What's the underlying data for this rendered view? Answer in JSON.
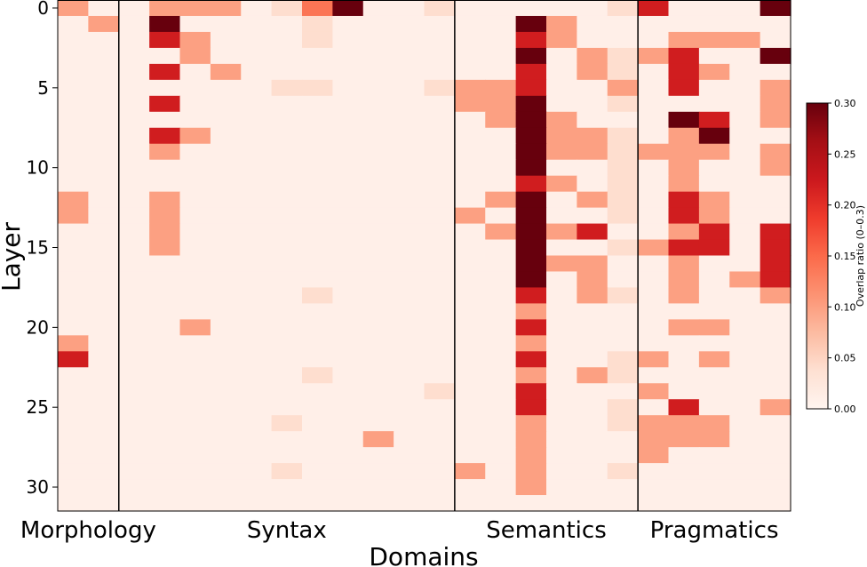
{
  "chart_data": {
    "type": "heatmap",
    "xlabel": "Domains",
    "ylabel": "Layer",
    "colorbar": {
      "label": "Overlap ratio (0–0.3)",
      "min": 0,
      "max": 0.3,
      "ticks": [
        "0.00",
        "0.05",
        "0.10",
        "0.15",
        "0.20",
        "0.25",
        "0.30"
      ],
      "colormap": "Reds"
    },
    "ytick_labels": [
      "0",
      "5",
      "10",
      "15",
      "20",
      "25",
      "30"
    ],
    "ytick_values": [
      0,
      5,
      10,
      15,
      20,
      25,
      30
    ],
    "n_layers": 32,
    "n_columns": 24,
    "groups": [
      {
        "name": "Morphology",
        "start": 0,
        "end": 2
      },
      {
        "name": "Syntax",
        "start": 2,
        "end": 13
      },
      {
        "name": "Semantics",
        "start": 13,
        "end": 19
      },
      {
        "name": "Pragmatics",
        "start": 19,
        "end": 24
      }
    ],
    "background_value": 0.01,
    "cells": [
      [
        0,
        0,
        0.1
      ],
      [
        1,
        1,
        0.1
      ],
      [
        12,
        0,
        0.1
      ],
      [
        13,
        0,
        0.1
      ],
      [
        21,
        0,
        0.1
      ],
      [
        22,
        0,
        0.22
      ],
      [
        0,
        3,
        0.1
      ],
      [
        0,
        4,
        0.1
      ],
      [
        0,
        5,
        0.1
      ],
      [
        0,
        7,
        0.04
      ],
      [
        0,
        8,
        0.14
      ],
      [
        0,
        9,
        0.3
      ],
      [
        0,
        12,
        0.04
      ],
      [
        1,
        3,
        0.3
      ],
      [
        2,
        3,
        0.22
      ],
      [
        4,
        3,
        0.22
      ],
      [
        6,
        3,
        0.22
      ],
      [
        8,
        3,
        0.22
      ],
      [
        9,
        3,
        0.1
      ],
      [
        12,
        3,
        0.1
      ],
      [
        13,
        3,
        0.1
      ],
      [
        14,
        3,
        0.1
      ],
      [
        15,
        3,
        0.1
      ],
      [
        1,
        8,
        0.04
      ],
      [
        2,
        8,
        0.04
      ],
      [
        2,
        4,
        0.1
      ],
      [
        3,
        4,
        0.1
      ],
      [
        8,
        4,
        0.1
      ],
      [
        20,
        4,
        0.1
      ],
      [
        4,
        5,
        0.1
      ],
      [
        5,
        7,
        0.04
      ],
      [
        5,
        8,
        0.04
      ],
      [
        5,
        12,
        0.04
      ],
      [
        5,
        13,
        0.1
      ],
      [
        6,
        13,
        0.1
      ],
      [
        13,
        13,
        0.1
      ],
      [
        29,
        13,
        0.1
      ],
      [
        18,
        8,
        0.04
      ],
      [
        23,
        8,
        0.04
      ],
      [
        26,
        7,
        0.04
      ],
      [
        29,
        7,
        0.04
      ],
      [
        24,
        12,
        0.04
      ],
      [
        27,
        10,
        0.1
      ],
      [
        5,
        14,
        0.1
      ],
      [
        6,
        14,
        0.1
      ],
      [
        7,
        14,
        0.1
      ],
      [
        12,
        14,
        0.1
      ],
      [
        14,
        14,
        0.1
      ],
      [
        1,
        15,
        0.3
      ],
      [
        2,
        15,
        0.22
      ],
      [
        3,
        15,
        0.3
      ],
      [
        4,
        15,
        0.22
      ],
      [
        5,
        15,
        0.22
      ],
      [
        6,
        15,
        0.3
      ],
      [
        7,
        15,
        0.3
      ],
      [
        8,
        15,
        0.3
      ],
      [
        9,
        15,
        0.3
      ],
      [
        10,
        15,
        0.3
      ],
      [
        11,
        15,
        0.22
      ],
      [
        12,
        15,
        0.3
      ],
      [
        13,
        15,
        0.3
      ],
      [
        14,
        15,
        0.3
      ],
      [
        15,
        15,
        0.3
      ],
      [
        16,
        15,
        0.3
      ],
      [
        17,
        15,
        0.3
      ],
      [
        18,
        15,
        0.22
      ],
      [
        19,
        15,
        0.1
      ],
      [
        20,
        15,
        0.22
      ],
      [
        21,
        15,
        0.1
      ],
      [
        22,
        15,
        0.22
      ],
      [
        23,
        15,
        0.1
      ],
      [
        24,
        15,
        0.22
      ],
      [
        25,
        15,
        0.22
      ],
      [
        26,
        15,
        0.1
      ],
      [
        27,
        15,
        0.1
      ],
      [
        28,
        15,
        0.1
      ],
      [
        29,
        15,
        0.1
      ],
      [
        30,
        15,
        0.1
      ],
      [
        1,
        16,
        0.1
      ],
      [
        2,
        16,
        0.1
      ],
      [
        7,
        16,
        0.1
      ],
      [
        8,
        16,
        0.1
      ],
      [
        9,
        16,
        0.1
      ],
      [
        11,
        16,
        0.1
      ],
      [
        14,
        16,
        0.1
      ],
      [
        16,
        16,
        0.1
      ],
      [
        3,
        17,
        0.1
      ],
      [
        4,
        17,
        0.1
      ],
      [
        8,
        17,
        0.1
      ],
      [
        9,
        17,
        0.1
      ],
      [
        12,
        17,
        0.1
      ],
      [
        14,
        17,
        0.22
      ],
      [
        16,
        17,
        0.1
      ],
      [
        17,
        17,
        0.1
      ],
      [
        18,
        17,
        0.1
      ],
      [
        23,
        17,
        0.1
      ],
      [
        0,
        18,
        0.04
      ],
      [
        3,
        18,
        0.04
      ],
      [
        4,
        18,
        0.04
      ],
      [
        5,
        18,
        0.1
      ],
      [
        6,
        18,
        0.04
      ],
      [
        8,
        18,
        0.04
      ],
      [
        9,
        18,
        0.04
      ],
      [
        10,
        18,
        0.04
      ],
      [
        11,
        18,
        0.04
      ],
      [
        12,
        18,
        0.04
      ],
      [
        13,
        18,
        0.04
      ],
      [
        15,
        18,
        0.04
      ],
      [
        18,
        18,
        0.04
      ],
      [
        22,
        18,
        0.04
      ],
      [
        23,
        18,
        0.04
      ],
      [
        25,
        18,
        0.04
      ],
      [
        26,
        18,
        0.04
      ],
      [
        29,
        18,
        0.04
      ],
      [
        0,
        19,
        0.22
      ],
      [
        3,
        19,
        0.1
      ],
      [
        9,
        19,
        0.1
      ],
      [
        15,
        19,
        0.1
      ],
      [
        22,
        19,
        0.1
      ],
      [
        24,
        19,
        0.1
      ],
      [
        26,
        19,
        0.1
      ],
      [
        27,
        19,
        0.1
      ],
      [
        28,
        19,
        0.1
      ],
      [
        2,
        20,
        0.1
      ],
      [
        3,
        20,
        0.22
      ],
      [
        4,
        20,
        0.22
      ],
      [
        5,
        20,
        0.22
      ],
      [
        7,
        20,
        0.3
      ],
      [
        8,
        20,
        0.1
      ],
      [
        9,
        20,
        0.1
      ],
      [
        10,
        20,
        0.1
      ],
      [
        11,
        20,
        0.1
      ],
      [
        12,
        20,
        0.22
      ],
      [
        13,
        20,
        0.22
      ],
      [
        14,
        20,
        0.1
      ],
      [
        15,
        20,
        0.22
      ],
      [
        16,
        20,
        0.1
      ],
      [
        17,
        20,
        0.1
      ],
      [
        18,
        20,
        0.1
      ],
      [
        20,
        20,
        0.1
      ],
      [
        25,
        20,
        0.22
      ],
      [
        26,
        20,
        0.1
      ],
      [
        27,
        20,
        0.1
      ],
      [
        2,
        21,
        0.1
      ],
      [
        4,
        21,
        0.1
      ],
      [
        7,
        21,
        0.22
      ],
      [
        8,
        21,
        0.3
      ],
      [
        9,
        21,
        0.1
      ],
      [
        12,
        21,
        0.1
      ],
      [
        13,
        21,
        0.1
      ],
      [
        14,
        21,
        0.22
      ],
      [
        15,
        21,
        0.22
      ],
      [
        20,
        21,
        0.1
      ],
      [
        22,
        21,
        0.1
      ],
      [
        26,
        21,
        0.1
      ],
      [
        27,
        21,
        0.1
      ],
      [
        2,
        22,
        0.1
      ],
      [
        17,
        22,
        0.1
      ],
      [
        0,
        23,
        0.3
      ],
      [
        3,
        23,
        0.3
      ],
      [
        5,
        23,
        0.1
      ],
      [
        6,
        23,
        0.1
      ],
      [
        7,
        23,
        0.1
      ],
      [
        9,
        23,
        0.1
      ],
      [
        10,
        23,
        0.1
      ],
      [
        14,
        23,
        0.22
      ],
      [
        15,
        23,
        0.22
      ],
      [
        16,
        23,
        0.22
      ],
      [
        17,
        23,
        0.22
      ],
      [
        18,
        23,
        0.1
      ],
      [
        25,
        23,
        0.1
      ]
    ]
  }
}
